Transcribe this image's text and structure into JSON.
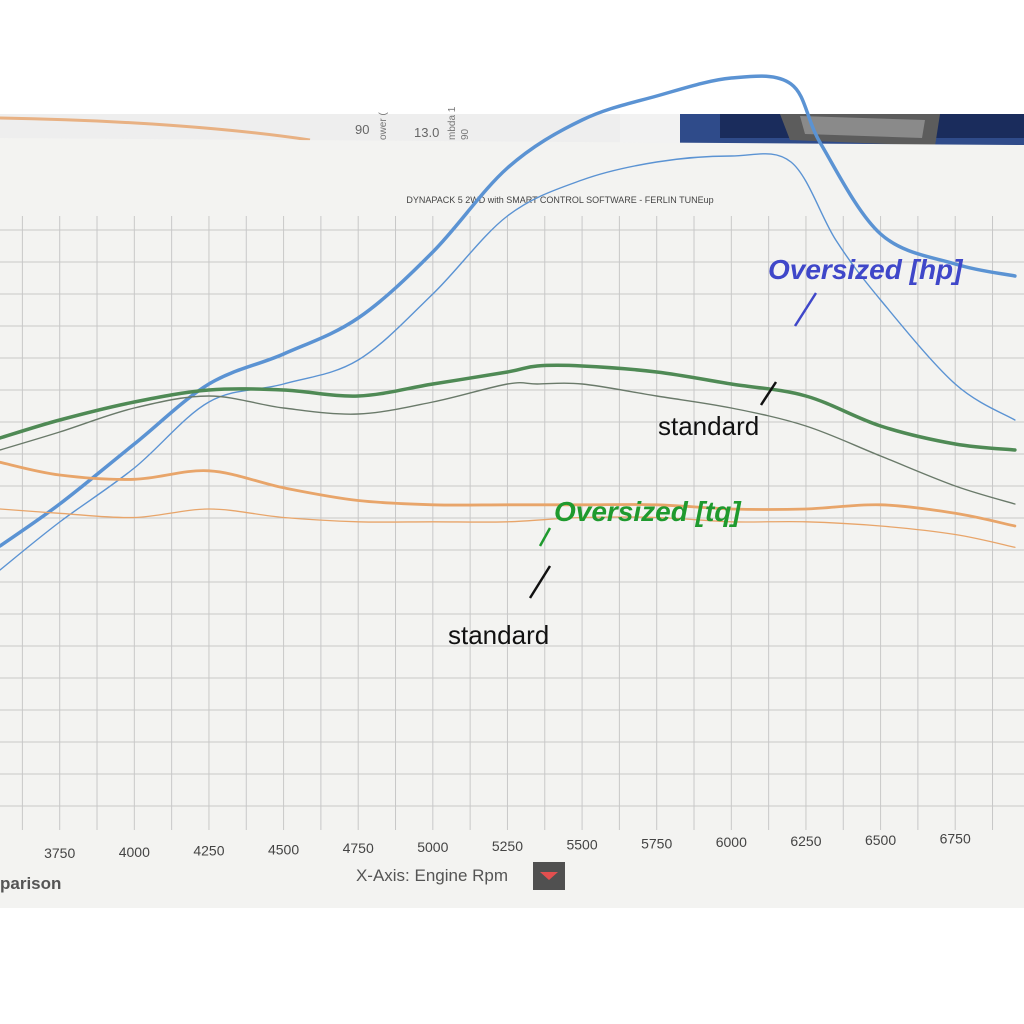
{
  "photo": {
    "background_paper": {
      "text_90": "90",
      "text_130": "13.0",
      "text_power": "ower (",
      "text_mbda": "mbda 1",
      "text_90b": "90"
    }
  },
  "printout": {
    "header": "DYNAPACK 5 2WD with SMART CONTROL SOFTWARE - FERLIN TUNEup",
    "footer_left": "parison",
    "xaxis_label": "X-Axis: Engine Rpm"
  },
  "annotations": {
    "hp_oversized": "Oversized [hp]",
    "hp_standard": "standard",
    "tq_oversized": "Oversized [tq]",
    "tq_standard": "standard"
  },
  "colors": {
    "hp_oversized": "#3f47c9",
    "tq_oversized": "#1f9a2e",
    "hp_curve": "#5b93d3",
    "tq_curve": "#4f8a55",
    "orange_curve": "#e8a56a",
    "grid": "#c8c8c8"
  },
  "chart_data": {
    "type": "line",
    "title": "DYNAPACK 5 2WD with SMART CONTROL SOFTWARE - FERLIN TUNEup",
    "xlabel": "X-Axis: Engine Rpm",
    "ylabel": "",
    "x_ticks": [
      3750,
      4000,
      4250,
      4500,
      4750,
      5000,
      5250,
      5500,
      5750,
      6000,
      6250,
      6500,
      6750
    ],
    "xlim": [
      3550,
      6950
    ],
    "grid": true,
    "series": [
      {
        "name": "Oversized [hp]",
        "x": [
          3550,
          3750,
          4000,
          4250,
          4500,
          4750,
          5000,
          5250,
          5500,
          5750,
          6000,
          6200,
          6300,
          6500,
          6750,
          6950
        ],
        "values": [
          59,
          66,
          76,
          86,
          91,
          97,
          108,
          122,
          130,
          134,
          137,
          136,
          126,
          111,
          106,
          104
        ]
      },
      {
        "name": "standard",
        "x": [
          3550,
          3750,
          4000,
          4250,
          4500,
          4750,
          5000,
          5250,
          5500,
          5750,
          6000,
          6200,
          6350,
          6500,
          6750,
          6950
        ],
        "values": [
          55,
          63,
          72,
          83,
          86,
          90,
          101,
          114,
          120,
          123,
          124,
          123,
          110,
          100,
          86,
          80
        ]
      },
      {
        "name": "Oversized [tq]",
        "x": [
          3550,
          3750,
          4000,
          4250,
          4500,
          4750,
          5000,
          5250,
          5350,
          5500,
          5750,
          6000,
          6250,
          6500,
          6750,
          6950
        ],
        "values": [
          77,
          80,
          83,
          85,
          85,
          84,
          86,
          88,
          89,
          89,
          88,
          86,
          84,
          79,
          76,
          75
        ]
      },
      {
        "name": "standard",
        "x": [
          3550,
          3750,
          4000,
          4250,
          4500,
          4750,
          5000,
          5250,
          5350,
          5500,
          5750,
          6000,
          6250,
          6500,
          6750,
          6950
        ],
        "values": [
          75,
          78,
          82,
          84,
          82,
          81,
          83,
          86,
          86,
          86,
          84,
          82,
          79,
          74,
          69,
          66
        ]
      },
      {
        "x": [
          3550,
          3750,
          4000,
          4250,
          4500,
          4750,
          5000,
          5250,
          5500,
          5750,
          6000,
          6250,
          6500,
          6750,
          6950
        ],
        "values": [
          103,
          100,
          99,
          101,
          97,
          94,
          93,
          93,
          93,
          93,
          92,
          92,
          93,
          91,
          88
        ]
      },
      {
        "x": [
          3550,
          3750,
          4000,
          4250,
          4500,
          4750,
          5000,
          5250,
          5500,
          5750,
          6000,
          6250,
          6500,
          6750,
          6950
        ],
        "values": [
          92,
          91,
          90,
          92,
          90,
          89,
          89,
          89,
          90,
          90,
          89,
          89,
          88,
          86,
          83
        ]
      }
    ]
  }
}
